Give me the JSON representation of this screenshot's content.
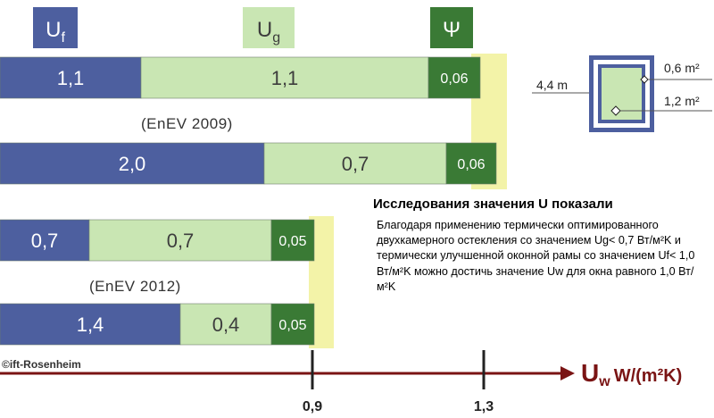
{
  "headers": [
    {
      "key": "uf",
      "symbol": "U",
      "subscript": "f",
      "bg": "#4d5f9f",
      "fg": "#ffffff"
    },
    {
      "key": "ug",
      "symbol": "U",
      "subscript": "g",
      "bg": "#c9e6b3",
      "fg": "#3d3d3d"
    },
    {
      "key": "psi",
      "symbol": "Ψ",
      "subscript": "",
      "bg": "#3a7a35",
      "fg": "#ffffff"
    }
  ],
  "colors": {
    "uf": "#4d5f9f",
    "ug": "#c9e6b3",
    "psi": "#3a7a35",
    "highlight": "#f3f3a8",
    "axis": "#7a1414",
    "text_dark": "#3d3d3d"
  },
  "chart_data": {
    "type": "bar",
    "stacked": true,
    "orientation": "horizontal",
    "groups": [
      {
        "label": "(EnEV 2009)",
        "rows": [
          {
            "segments": [
              {
                "series": "uf",
                "label": "1,1"
              },
              {
                "series": "ug",
                "label": "1,1"
              },
              {
                "series": "psi",
                "label": "0,06"
              }
            ]
          },
          {
            "segments": [
              {
                "series": "uf",
                "label": "2,0"
              },
              {
                "series": "ug",
                "label": "0,7"
              },
              {
                "series": "psi",
                "label": "0,06"
              }
            ]
          }
        ],
        "threshold": 1.3
      },
      {
        "label": "(EnEV 2012)",
        "rows": [
          {
            "segments": [
              {
                "series": "uf",
                "label": "0,7"
              },
              {
                "series": "ug",
                "label": "0,7"
              },
              {
                "series": "psi",
                "label": "0,05"
              }
            ]
          },
          {
            "segments": [
              {
                "series": "uf",
                "label": "1,4"
              },
              {
                "series": "ug",
                "label": "0,4"
              },
              {
                "series": "psi",
                "label": "0,05"
              }
            ]
          }
        ],
        "threshold": 0.9
      }
    ],
    "x_axis": {
      "label_main": "U",
      "label_sub": "w",
      "label_unit": "W/(m²K)",
      "ticks": [
        {
          "value": 0.9,
          "label": "0,9"
        },
        {
          "value": 1.3,
          "label": "1,3"
        }
      ]
    }
  },
  "window_diagram": {
    "perimeter_label": "4,4 m",
    "top_area_label": "0,6 m²",
    "bottom_area_label": "1,2 m²"
  },
  "note": {
    "title": "Исследования значения U показали",
    "body": "Благодаря применению термически оптимированного двухкамерного остекления со значением Ug< 0,7 Вт/м²K и термически улучшенной оконной рамы со значением Uf< 1,0 Вт/м²K можно достичь значение Uw для окна равного 1,0 Вт/м²K"
  },
  "copyright": "©ift-Rosenheim"
}
